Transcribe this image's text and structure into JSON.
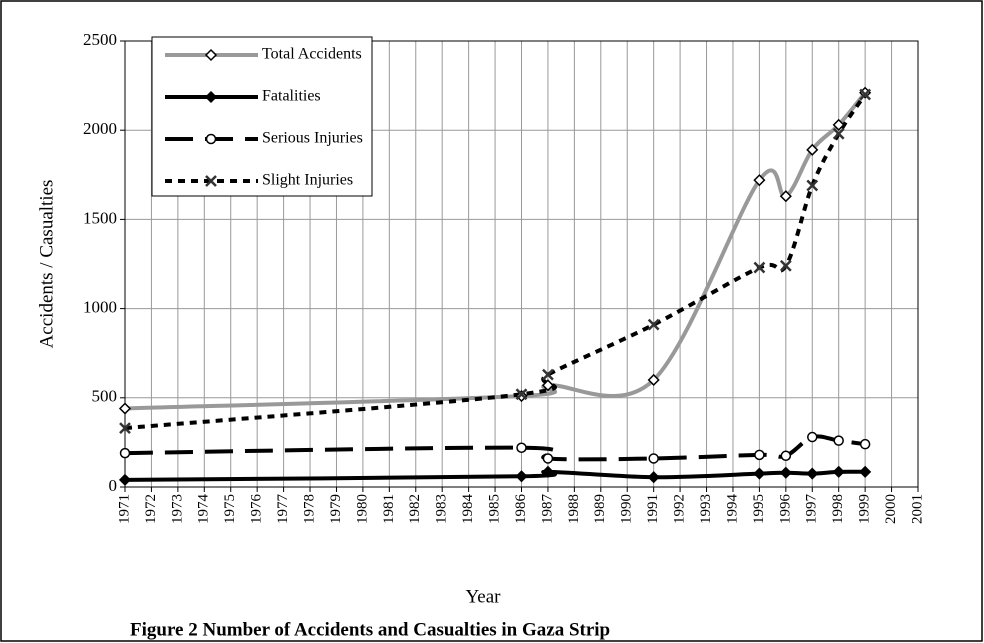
{
  "chart_data": {
    "type": "line",
    "title": "Figure  2  Number of Accidents and Casualties in Gaza Strip",
    "x_label": "Year",
    "y_label": "Accidents / Casualties",
    "x": [
      1971,
      1986,
      1987,
      1991,
      1995,
      1996,
      1997,
      1998,
      1999
    ],
    "series": [
      {
        "name": "Total Accidents",
        "color": "#999999",
        "dash": "solid",
        "marker": "diamond-open",
        "values": [
          440,
          510,
          570,
          600,
          1720,
          1630,
          1890,
          2030,
          2210
        ]
      },
      {
        "name": "Fatalities",
        "color": "#000000",
        "dash": "solid",
        "marker": "diamond",
        "values": [
          40,
          60,
          85,
          55,
          75,
          80,
          75,
          85,
          85
        ]
      },
      {
        "name": "Serious Injuries",
        "color": "#000000",
        "dash": "long",
        "marker": "circle-open",
        "values": [
          190,
          220,
          160,
          160,
          180,
          175,
          280,
          260,
          240
        ]
      },
      {
        "name": "Slight Injuries",
        "color": "#000000",
        "dash": "dot",
        "marker": "x",
        "values": [
          330,
          520,
          630,
          910,
          1230,
          1240,
          1690,
          1980,
          2200
        ]
      }
    ],
    "xlim": [
      1971,
      2001
    ],
    "xticks": [
      1971,
      1972,
      1973,
      1974,
      1975,
      1976,
      1977,
      1978,
      1979,
      1980,
      1981,
      1982,
      1983,
      1984,
      1985,
      1986,
      1987,
      1988,
      1989,
      1990,
      1991,
      1992,
      1993,
      1994,
      1995,
      1996,
      1997,
      1998,
      1999,
      2000,
      2001
    ],
    "ylim": [
      0,
      2500
    ],
    "yticks": [
      0,
      500,
      1000,
      1500,
      2000,
      2500
    ],
    "grid": true,
    "legend": "upper-left"
  }
}
